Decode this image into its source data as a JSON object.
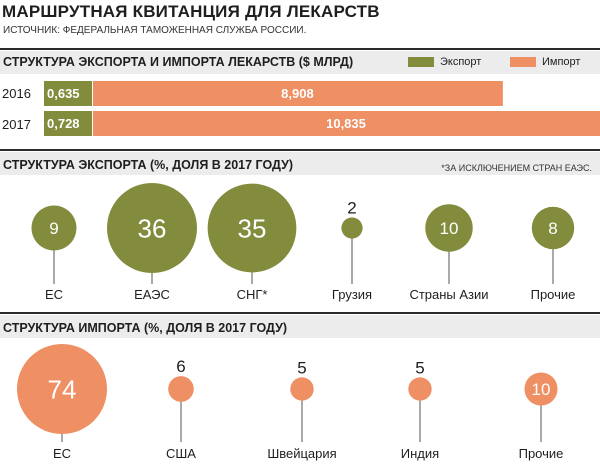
{
  "title": "МАРШРУТНАЯ КВИТАНЦИЯ ДЛЯ ЛЕКАРСТВ",
  "source": "ИСТОЧНИК: ФЕДЕРАЛЬНАЯ ТАМОЖЕННАЯ СЛУЖБА РОССИИ.",
  "colors": {
    "export": "#828c3c",
    "import": "#ee8f64"
  },
  "chart_data": [
    {
      "type": "bar",
      "title": "СТРУКТУРА ЭКСПОРТА И ИМПОРТА ЛЕКАРСТВ ($ МЛРД)",
      "legend": [
        {
          "name": "Экспорт",
          "key": "export"
        },
        {
          "name": "Импорт",
          "key": "import"
        }
      ],
      "legend_position": "top-right",
      "stacked": true,
      "categories": [
        "2016",
        "2017"
      ],
      "series": [
        {
          "name": "Экспорт",
          "values": [
            0.635,
            0.728
          ],
          "labels": [
            "0,635",
            "0,728"
          ]
        },
        {
          "name": "Импорт",
          "values": [
            8.908,
            10.835
          ],
          "labels": [
            "8,908",
            "10,835"
          ]
        }
      ]
    },
    {
      "type": "scatter",
      "title": "СТРУКТУРА ЭКСПОРТА (%, ДОЛЯ В 2017 ГОДУ)",
      "note": "*ЗА ИСКЛЮЧЕНИЕМ СТРАН ЕАЭС.",
      "categories": [
        "ЕС",
        "ЕАЭС",
        "СНГ*",
        "Грузия",
        "Страны Азии",
        "Прочие"
      ],
      "values": [
        9,
        36,
        35,
        2,
        10,
        8
      ],
      "labels": [
        "9",
        "36",
        "35",
        "2",
        "10",
        "8"
      ]
    },
    {
      "type": "scatter",
      "title": "СТРУКТУРА ИМПОРТА (%, ДОЛЯ В 2017 ГОДУ)",
      "categories": [
        "ЕС",
        "США",
        "Швейцария",
        "Индия",
        "Прочие"
      ],
      "values": [
        74,
        6,
        5,
        5,
        10
      ],
      "labels": [
        "74",
        "6",
        "5",
        "5",
        "10"
      ]
    }
  ]
}
